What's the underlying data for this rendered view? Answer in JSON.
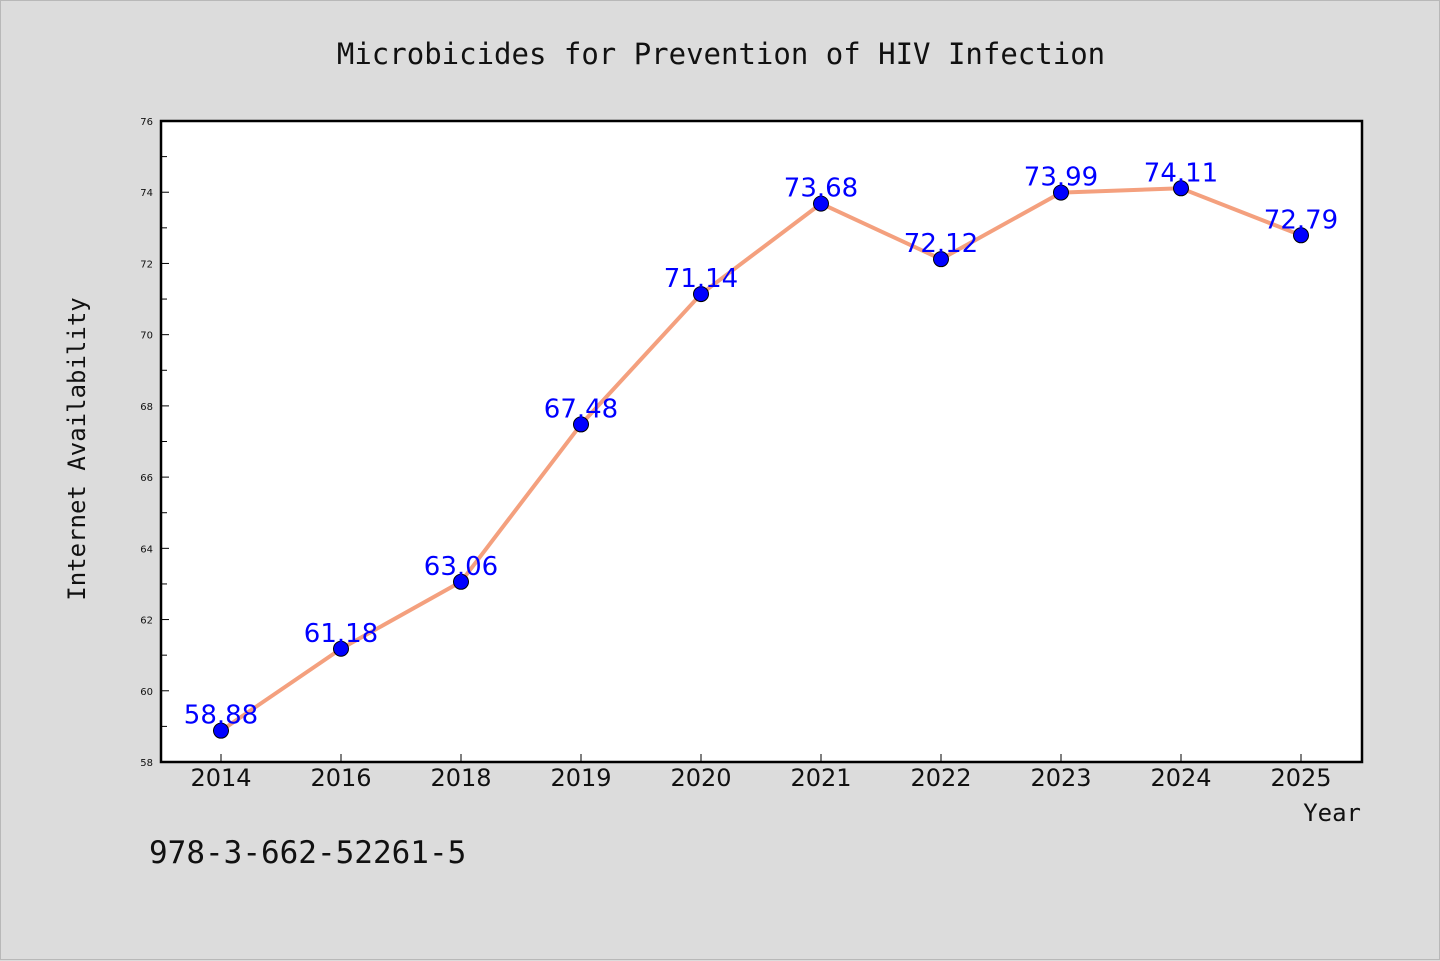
{
  "chart_data": {
    "type": "line",
    "title": "Microbicides for Prevention of HIV Infection",
    "xlabel": "Year",
    "ylabel": "Internet Availability",
    "categories": [
      "2014",
      "2016",
      "2018",
      "2019",
      "2020",
      "2021",
      "2022",
      "2023",
      "2024",
      "2025"
    ],
    "series": [
      {
        "values": [
          58.88,
          61.18,
          63.06,
          67.48,
          71.14,
          73.68,
          72.12,
          73.99,
          74.11,
          72.79
        ],
        "labels": [
          "58.88",
          "61.18",
          "63.06",
          "67.48",
          "71.14",
          "73.68",
          "72.12",
          "73.99",
          "74.11",
          "72.79"
        ],
        "line_color": "#f4a07e",
        "marker_color": "#0000ff"
      }
    ],
    "ylim": [
      58,
      76
    ],
    "yticks": [
      "58",
      "60",
      "62",
      "64",
      "66",
      "68",
      "70",
      "72",
      "74",
      "76"
    ],
    "grid": false,
    "legend": "none"
  },
  "footer": {
    "code": "978-3-662-52261-5"
  }
}
